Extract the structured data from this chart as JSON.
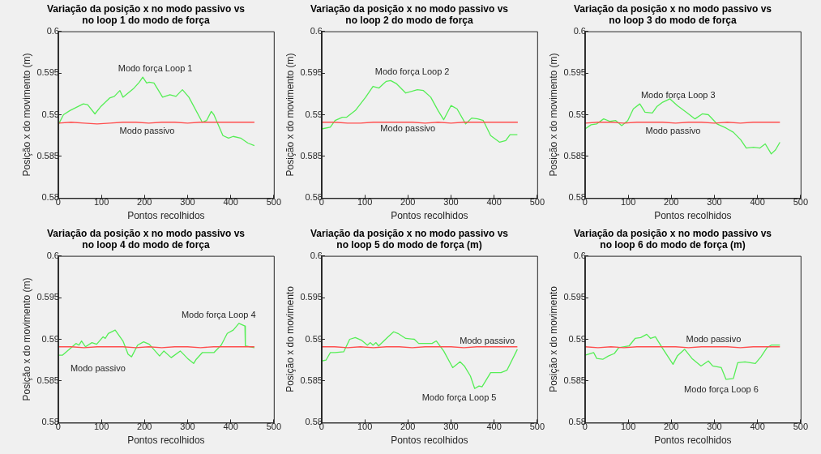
{
  "chart_data": [
    {
      "type": "line",
      "title": "Variação da posição x no modo passivo vs\nno loop 1 do modo de força",
      "xlabel": "Pontos recolhidos",
      "ylabel": "Posição x do movimento (m)",
      "xlim": [
        0,
        500
      ],
      "xticks": [
        0,
        100,
        200,
        300,
        400,
        500
      ],
      "ylim": [
        0.58,
        0.6
      ],
      "yticks": [
        0.58,
        0.585,
        0.59,
        0.595,
        0.6
      ],
      "series": [
        {
          "color": "#ff4d4d",
          "x": [
            0,
            30,
            60,
            90,
            120,
            150,
            180,
            210,
            240,
            270,
            300,
            330,
            360,
            390,
            420,
            455
          ],
          "values": [
            0.589,
            0.5891,
            0.589,
            0.5889,
            0.589,
            0.5891,
            0.5891,
            0.589,
            0.5891,
            0.5891,
            0.589,
            0.5891,
            0.5891,
            0.5891,
            0.5891,
            0.5891
          ]
        },
        {
          "color": "#55ee55",
          "x": [
            0,
            12,
            27,
            58,
            68,
            85,
            99,
            119,
            130,
            143,
            150,
            174,
            188,
            196,
            205,
            211,
            222,
            242,
            259,
            273,
            288,
            303,
            334,
            344,
            355,
            361,
            382,
            395,
            406,
            423,
            440,
            455
          ],
          "values": [
            0.5888,
            0.59,
            0.5905,
            0.5913,
            0.5912,
            0.5901,
            0.591,
            0.592,
            0.5922,
            0.5929,
            0.5921,
            0.5931,
            0.5939,
            0.5945,
            0.5938,
            0.5939,
            0.5938,
            0.5921,
            0.5924,
            0.5922,
            0.593,
            0.5921,
            0.5891,
            0.5893,
            0.5904,
            0.59,
            0.5875,
            0.5872,
            0.5874,
            0.5872,
            0.5866,
            0.5863
          ]
        }
      ],
      "annotations": [
        "Modo força Loop 1",
        "Modo passivo"
      ]
    },
    {
      "type": "line",
      "title": "Variação da posição x no modo passivo vs\nno loop 2 do modo de força",
      "xlabel": "Pontos recolhidos",
      "ylabel": "Posição x do movimento (m)",
      "xlim": [
        0,
        500
      ],
      "xticks": [
        0,
        100,
        200,
        300,
        400,
        500
      ],
      "ylim": [
        0.58,
        0.6
      ],
      "yticks": [
        0.58,
        0.585,
        0.59,
        0.595,
        0.6
      ],
      "series": [
        {
          "color": "#ff4d4d",
          "x": [
            0,
            30,
            60,
            90,
            120,
            150,
            180,
            210,
            240,
            270,
            300,
            330,
            360,
            390,
            420,
            455
          ],
          "values": [
            0.5891,
            0.5891,
            0.589,
            0.589,
            0.5891,
            0.5891,
            0.5891,
            0.5891,
            0.589,
            0.5891,
            0.589,
            0.5891,
            0.5891,
            0.5891,
            0.5891,
            0.5891
          ]
        },
        {
          "color": "#55ee55",
          "x": [
            0,
            20,
            31,
            48,
            58,
            78,
            102,
            119,
            133,
            143,
            150,
            160,
            174,
            195,
            222,
            236,
            253,
            270,
            283,
            300,
            314,
            334,
            348,
            362,
            375,
            392,
            413,
            427,
            437,
            454
          ],
          "values": [
            0.5883,
            0.5885,
            0.5893,
            0.5897,
            0.5897,
            0.5905,
            0.5921,
            0.5934,
            0.5932,
            0.5937,
            0.594,
            0.5941,
            0.5937,
            0.5926,
            0.593,
            0.5929,
            0.5921,
            0.5905,
            0.5894,
            0.5911,
            0.5907,
            0.5889,
            0.5896,
            0.5895,
            0.5893,
            0.5875,
            0.5867,
            0.5869,
            0.5876,
            0.5876
          ]
        }
      ],
      "annotations": [
        "Modo força Loop 2",
        "Modo passivo"
      ]
    },
    {
      "type": "line",
      "title": "Variação da posição x no modo passivo vs\nno loop 3 do modo de força",
      "xlabel": "Pontos recolhidos",
      "ylabel": "Posição x do movimento (m)",
      "xlim": [
        0,
        500
      ],
      "xticks": [
        0,
        100,
        200,
        300,
        400,
        500
      ],
      "ylim": [
        0.58,
        0.6
      ],
      "yticks": [
        0.58,
        0.585,
        0.59,
        0.595,
        0.6
      ],
      "series": [
        {
          "color": "#ff4d4d",
          "x": [
            0,
            30,
            60,
            90,
            120,
            150,
            180,
            210,
            240,
            270,
            300,
            330,
            360,
            390,
            420,
            452
          ],
          "values": [
            0.589,
            0.5891,
            0.5891,
            0.589,
            0.5891,
            0.5891,
            0.5891,
            0.589,
            0.5891,
            0.5891,
            0.589,
            0.5891,
            0.589,
            0.5891,
            0.5891,
            0.5891
          ]
        },
        {
          "color": "#55ee55",
          "x": [
            0,
            14,
            27,
            43,
            58,
            71,
            85,
            99,
            112,
            127,
            139,
            156,
            167,
            180,
            197,
            214,
            235,
            255,
            272,
            286,
            306,
            327,
            344,
            361,
            374,
            391,
            405,
            418,
            432,
            442,
            452
          ],
          "values": [
            0.5883,
            0.5888,
            0.5889,
            0.5895,
            0.5892,
            0.5893,
            0.5887,
            0.5893,
            0.5907,
            0.5913,
            0.5903,
            0.5902,
            0.591,
            0.5915,
            0.5919,
            0.5911,
            0.5903,
            0.5895,
            0.5901,
            0.59,
            0.5889,
            0.5884,
            0.5879,
            0.587,
            0.586,
            0.5861,
            0.586,
            0.5865,
            0.5853,
            0.5858,
            0.5867
          ]
        }
      ],
      "annotations": [
        "Modo força Loop 3",
        "Modo passivo"
      ]
    },
    {
      "type": "line",
      "title": "Variação da posição x no modo passivo vs\nno loop 4 do modo de força",
      "xlabel": "Pontos recolhidos",
      "ylabel": "Posição x do movimento (m)",
      "xlim": [
        0,
        500
      ],
      "xticks": [
        0,
        100,
        200,
        300,
        400,
        500
      ],
      "ylim": [
        0.58,
        0.6
      ],
      "yticks": [
        0.58,
        0.585,
        0.59,
        0.595,
        0.6
      ],
      "series": [
        {
          "color": "#ff4d4d",
          "x": [
            0,
            30,
            60,
            90,
            120,
            150,
            180,
            210,
            240,
            270,
            300,
            330,
            360,
            390,
            420,
            455
          ],
          "values": [
            0.5891,
            0.5891,
            0.589,
            0.5891,
            0.5891,
            0.5891,
            0.589,
            0.5891,
            0.589,
            0.5891,
            0.5891,
            0.589,
            0.5891,
            0.5891,
            0.5891,
            0.5891
          ]
        },
        {
          "color": "#55ee55",
          "x": [
            0,
            10,
            41,
            48,
            54,
            63,
            78,
            89,
            104,
            109,
            116,
            132,
            150,
            162,
            170,
            184,
            198,
            211,
            235,
            245,
            262,
            283,
            300,
            314,
            320,
            334,
            361,
            378,
            392,
            406,
            419,
            433,
            434,
            455
          ],
          "values": [
            0.5881,
            0.5881,
            0.5895,
            0.5893,
            0.5898,
            0.5891,
            0.5896,
            0.5894,
            0.5903,
            0.5901,
            0.5907,
            0.5911,
            0.5898,
            0.5882,
            0.5879,
            0.5893,
            0.5897,
            0.5894,
            0.588,
            0.5886,
            0.5878,
            0.5886,
            0.5877,
            0.5871,
            0.5876,
            0.5884,
            0.5884,
            0.5893,
            0.5907,
            0.5911,
            0.5919,
            0.5916,
            0.5892,
            0.589
          ]
        }
      ],
      "annotations": [
        "Modo força Loop 4",
        "Modo passivo"
      ]
    },
    {
      "type": "line",
      "title": "Variação da posição x no modo passivo vs\nno loop 5 do modo de força (m)",
      "xlabel": "Pontos recolhidos",
      "ylabel": "Posição x do movimento",
      "xlim": [
        0,
        500
      ],
      "xticks": [
        0,
        100,
        200,
        300,
        400,
        500
      ],
      "ylim": [
        0.58,
        0.6
      ],
      "yticks": [
        0.58,
        0.585,
        0.59,
        0.595,
        0.6
      ],
      "series": [
        {
          "color": "#ff4d4d",
          "x": [
            0,
            30,
            60,
            90,
            120,
            150,
            180,
            210,
            240,
            270,
            300,
            330,
            360,
            390,
            420,
            454
          ],
          "values": [
            0.5891,
            0.5891,
            0.589,
            0.5891,
            0.589,
            0.5891,
            0.5891,
            0.589,
            0.5891,
            0.5891,
            0.5891,
            0.589,
            0.5891,
            0.5891,
            0.5891,
            0.5891
          ]
        },
        {
          "color": "#55ee55",
          "x": [
            0,
            10,
            20,
            31,
            51,
            65,
            78,
            92,
            106,
            113,
            119,
            126,
            132,
            154,
            167,
            177,
            195,
            215,
            225,
            256,
            266,
            283,
            304,
            321,
            331,
            345,
            355,
            365,
            372,
            392,
            416,
            430,
            454
          ],
          "values": [
            0.5874,
            0.5875,
            0.5884,
            0.5884,
            0.5885,
            0.59,
            0.5902,
            0.5899,
            0.5893,
            0.5896,
            0.5893,
            0.5896,
            0.5892,
            0.5903,
            0.5909,
            0.5907,
            0.5901,
            0.59,
            0.5895,
            0.5895,
            0.5898,
            0.5886,
            0.5866,
            0.5873,
            0.5868,
            0.5856,
            0.5841,
            0.5844,
            0.5843,
            0.586,
            0.586,
            0.5863,
            0.5888
          ]
        }
      ],
      "annotations": [
        "Modo passivo",
        "Modo força Loop 5"
      ]
    },
    {
      "type": "line",
      "title": "Variação da posição x no modo passivo vs\nno loop 6 do modo de força (m)",
      "xlabel": "Pontos recolhidos",
      "ylabel": "Posição x do movimento",
      "xlim": [
        0,
        500
      ],
      "xticks": [
        0,
        100,
        200,
        300,
        400,
        500
      ],
      "ylim": [
        0.58,
        0.6
      ],
      "yticks": [
        0.58,
        0.585,
        0.59,
        0.595,
        0.6
      ],
      "series": [
        {
          "color": "#ff4d4d",
          "x": [
            0,
            30,
            60,
            90,
            120,
            150,
            180,
            210,
            240,
            270,
            300,
            330,
            360,
            390,
            420,
            452
          ],
          "values": [
            0.5891,
            0.589,
            0.5891,
            0.589,
            0.5891,
            0.5891,
            0.5891,
            0.5891,
            0.589,
            0.5891,
            0.5891,
            0.5891,
            0.589,
            0.5891,
            0.5891,
            0.5891
          ]
        },
        {
          "color": "#55ee55",
          "x": [
            0,
            20,
            27,
            41,
            54,
            68,
            78,
            102,
            116,
            129,
            143,
            152,
            163,
            180,
            204,
            214,
            231,
            248,
            269,
            286,
            296,
            316,
            327,
            344,
            354,
            371,
            395,
            408,
            422,
            432,
            452
          ],
          "values": [
            0.5881,
            0.5884,
            0.5877,
            0.5876,
            0.588,
            0.5883,
            0.589,
            0.5892,
            0.5901,
            0.5902,
            0.5906,
            0.5901,
            0.5903,
            0.5889,
            0.587,
            0.588,
            0.5888,
            0.5877,
            0.5868,
            0.5874,
            0.5868,
            0.5866,
            0.5852,
            0.5853,
            0.5872,
            0.5873,
            0.5871,
            0.5879,
            0.589,
            0.5893,
            0.5893
          ]
        }
      ],
      "annotations": [
        "Modo passivo",
        "Modo força Loop 6"
      ]
    }
  ]
}
